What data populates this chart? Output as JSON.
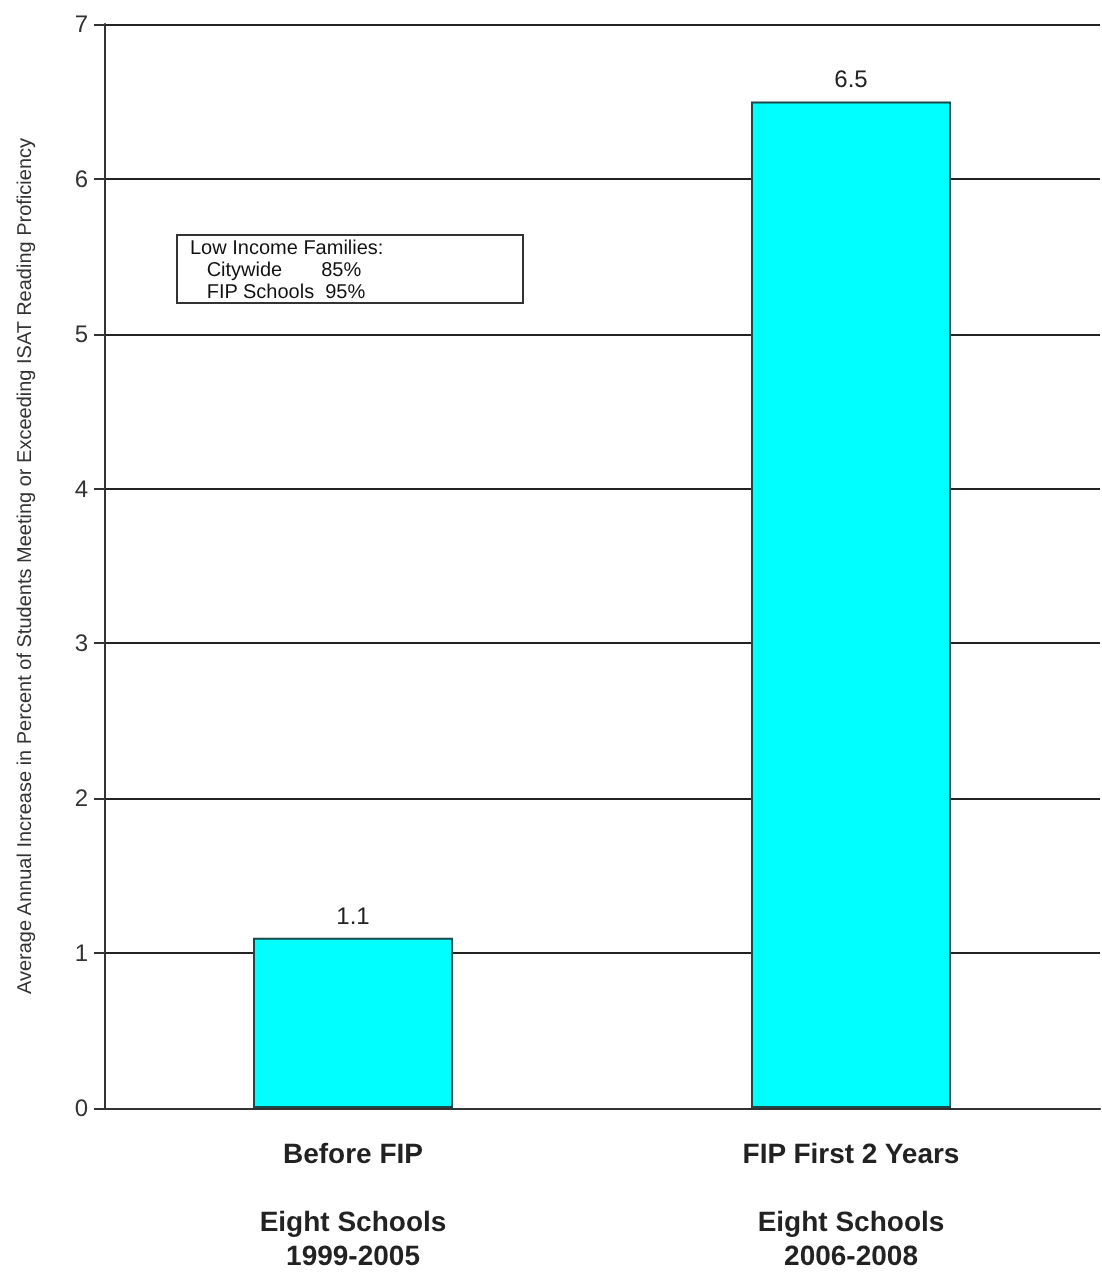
{
  "chart_data": {
    "type": "bar",
    "categories": [
      "Before FIP\n\nEight Schools\n1999-2005",
      "FIP First 2 Years\n\nEight Schools\n2006-2008"
    ],
    "values": [
      1.1,
      6.5
    ],
    "color": "#00ffff",
    "data_labels": true,
    "ylabel": "Average Annual Increase in Percent of Students Meeting or Exceeding ISAT Reading Proficiency",
    "ylim": [
      0,
      7
    ],
    "yticks": [
      0,
      1,
      2,
      3,
      4,
      5,
      6,
      7
    ],
    "grid": "y",
    "annotations": [
      "Low Income Families:\n   Citywide       85%\n   FIP Schools  95%"
    ]
  }
}
